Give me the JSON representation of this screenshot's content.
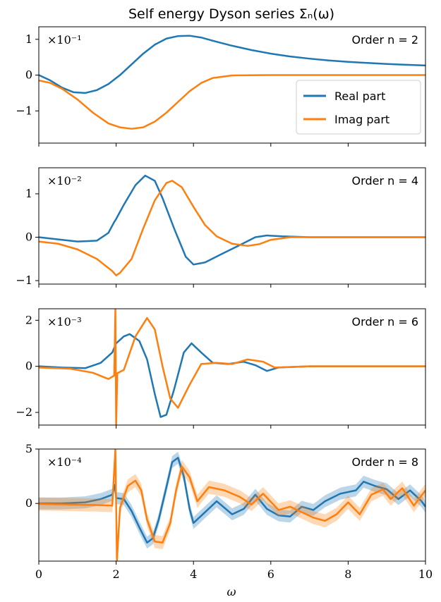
{
  "chart_data": {
    "type": "line",
    "title": "Self energy Dyson series Σₙ(ω)",
    "xlabel": "ω",
    "xlim": [
      0,
      10
    ],
    "x_ticks": [
      "0",
      "2",
      "4",
      "6",
      "8",
      "10"
    ],
    "legend": {
      "placement": "lower-right of first panel",
      "entries": [
        {
          "name": "Real part",
          "color": "#1f77b4"
        },
        {
          "name": "Imag part",
          "color": "#ff7f0e"
        }
      ]
    },
    "panels": [
      {
        "label": "Order n = 2",
        "scale_label": "×10⁻¹",
        "ylim": [
          -1.9,
          1.35
        ],
        "y_ticks": [
          {
            "v": 1,
            "t": "1"
          },
          {
            "v": 0,
            "t": "0"
          },
          {
            "v": -1,
            "t": "−1"
          }
        ],
        "series": [
          {
            "name": "Real part",
            "color": "#1f77b4",
            "points": [
              [
                0,
                0
              ],
              [
                0.3,
                -0.15
              ],
              [
                0.6,
                -0.35
              ],
              [
                0.9,
                -0.48
              ],
              [
                1.2,
                -0.5
              ],
              [
                1.5,
                -0.42
              ],
              [
                1.8,
                -0.25
              ],
              [
                2.1,
                0
              ],
              [
                2.4,
                0.3
              ],
              [
                2.7,
                0.6
              ],
              [
                3.0,
                0.85
              ],
              [
                3.3,
                1.02
              ],
              [
                3.6,
                1.09
              ],
              [
                3.9,
                1.1
              ],
              [
                4.2,
                1.05
              ],
              [
                4.5,
                0.96
              ],
              [
                5.0,
                0.82
              ],
              [
                5.5,
                0.7
              ],
              [
                6.0,
                0.6
              ],
              [
                6.5,
                0.52
              ],
              [
                7.0,
                0.46
              ],
              [
                7.5,
                0.41
              ],
              [
                8.0,
                0.37
              ],
              [
                8.5,
                0.34
              ],
              [
                9.0,
                0.31
              ],
              [
                9.5,
                0.29
              ],
              [
                10,
                0.27
              ]
            ]
          },
          {
            "name": "Imag part",
            "color": "#ff7f0e",
            "points": [
              [
                0,
                -0.15
              ],
              [
                0.3,
                -0.22
              ],
              [
                0.6,
                -0.38
              ],
              [
                1.0,
                -0.68
              ],
              [
                1.4,
                -1.05
              ],
              [
                1.8,
                -1.35
              ],
              [
                2.1,
                -1.46
              ],
              [
                2.4,
                -1.5
              ],
              [
                2.7,
                -1.46
              ],
              [
                3.0,
                -1.3
              ],
              [
                3.3,
                -1.05
              ],
              [
                3.6,
                -0.75
              ],
              [
                3.9,
                -0.45
              ],
              [
                4.2,
                -0.22
              ],
              [
                4.5,
                -0.08
              ],
              [
                5.0,
                -0.01
              ],
              [
                6.0,
                0
              ],
              [
                8.0,
                0
              ],
              [
                10,
                0
              ]
            ]
          }
        ]
      },
      {
        "label": "Order n = 4",
        "scale_label": "×10⁻²",
        "ylim": [
          -1.08,
          1.6
        ],
        "y_ticks": [
          {
            "v": 1,
            "t": "1"
          },
          {
            "v": 0,
            "t": "0"
          },
          {
            "v": -1,
            "t": "−1"
          }
        ],
        "series": [
          {
            "name": "Real part",
            "color": "#1f77b4",
            "points": [
              [
                0,
                0
              ],
              [
                0.5,
                -0.05
              ],
              [
                1.0,
                -0.1
              ],
              [
                1.5,
                -0.08
              ],
              [
                1.8,
                0.1
              ],
              [
                1.95,
                0.35
              ],
              [
                2.0,
                0.42
              ],
              [
                2.2,
                0.75
              ],
              [
                2.5,
                1.2
              ],
              [
                2.75,
                1.42
              ],
              [
                3.0,
                1.3
              ],
              [
                3.2,
                0.9
              ],
              [
                3.5,
                0.2
              ],
              [
                3.8,
                -0.45
              ],
              [
                4.0,
                -0.63
              ],
              [
                4.3,
                -0.58
              ],
              [
                4.7,
                -0.4
              ],
              [
                5.2,
                -0.18
              ],
              [
                5.6,
                0
              ],
              [
                5.9,
                0.04
              ],
              [
                6.3,
                0.02
              ],
              [
                7,
                0
              ],
              [
                10,
                0
              ]
            ]
          },
          {
            "name": "Imag part",
            "color": "#ff7f0e",
            "points": [
              [
                0,
                -0.1
              ],
              [
                0.5,
                -0.15
              ],
              [
                1.0,
                -0.28
              ],
              [
                1.5,
                -0.5
              ],
              [
                1.9,
                -0.78
              ],
              [
                2.0,
                -0.88
              ],
              [
                2.1,
                -0.82
              ],
              [
                2.4,
                -0.5
              ],
              [
                2.7,
                0.2
              ],
              [
                3.0,
                0.85
              ],
              [
                3.3,
                1.25
              ],
              [
                3.45,
                1.3
              ],
              [
                3.7,
                1.15
              ],
              [
                4.0,
                0.7
              ],
              [
                4.3,
                0.28
              ],
              [
                4.6,
                0.02
              ],
              [
                5.0,
                -0.15
              ],
              [
                5.4,
                -0.2
              ],
              [
                5.7,
                -0.16
              ],
              [
                6.0,
                -0.06
              ],
              [
                6.5,
                0
              ],
              [
                10,
                0
              ]
            ]
          }
        ]
      },
      {
        "label": "Order n = 6",
        "scale_label": "×10⁻³",
        "ylim": [
          -2.55,
          2.5
        ],
        "y_ticks": [
          {
            "v": 2,
            "t": "2"
          },
          {
            "v": 0,
            "t": "0"
          },
          {
            "v": -2,
            "t": "−2"
          }
        ],
        "series": [
          {
            "name": "Real part",
            "color": "#1f77b4",
            "points": [
              [
                0,
                0
              ],
              [
                0.6,
                -0.05
              ],
              [
                1.2,
                -0.08
              ],
              [
                1.6,
                0.15
              ],
              [
                1.9,
                0.6
              ],
              [
                2.0,
                1.0
              ],
              [
                2.2,
                1.3
              ],
              [
                2.35,
                1.4
              ],
              [
                2.6,
                1.1
              ],
              [
                2.8,
                0.3
              ],
              [
                3.0,
                -1.2
              ],
              [
                3.15,
                -2.2
              ],
              [
                3.3,
                -2.1
              ],
              [
                3.5,
                -1.0
              ],
              [
                3.75,
                0.6
              ],
              [
                3.95,
                1.0
              ],
              [
                4.2,
                0.6
              ],
              [
                4.5,
                0.15
              ],
              [
                4.9,
                0.1
              ],
              [
                5.3,
                0.2
              ],
              [
                5.6,
                0.05
              ],
              [
                5.9,
                -0.2
              ],
              [
                6.2,
                -0.05
              ],
              [
                7,
                0
              ],
              [
                10,
                0
              ]
            ]
          },
          {
            "name": "Imag part",
            "color": "#ff7f0e",
            "points": [
              [
                0,
                -0.05
              ],
              [
                0.8,
                -0.1
              ],
              [
                1.4,
                -0.28
              ],
              [
                1.8,
                -0.55
              ],
              [
                1.95,
                -0.4
              ],
              [
                1.98,
                2.5
              ],
              [
                2.0,
                -2.6
              ],
              [
                2.03,
                -0.3
              ],
              [
                2.2,
                -0.15
              ],
              [
                2.5,
                1.3
              ],
              [
                2.8,
                2.1
              ],
              [
                3.0,
                1.6
              ],
              [
                3.2,
                0
              ],
              [
                3.4,
                -1.4
              ],
              [
                3.6,
                -1.8
              ],
              [
                3.9,
                -0.8
              ],
              [
                4.2,
                0.1
              ],
              [
                4.6,
                0.15
              ],
              [
                5.0,
                0.1
              ],
              [
                5.4,
                0.3
              ],
              [
                5.8,
                0.2
              ],
              [
                6.1,
                -0.05
              ],
              [
                7,
                0
              ],
              [
                10,
                0
              ]
            ]
          }
        ]
      },
      {
        "label": "Order n = 8",
        "scale_label": "×10⁻⁴",
        "ylim": [
          -5.3,
          5.0
        ],
        "y_ticks": [
          {
            "v": 5,
            "t": "5"
          },
          {
            "v": 0,
            "t": "0"
          }
        ],
        "series": [
          {
            "name": "Real part",
            "color": "#1f77b4",
            "band": 0.55,
            "points": [
              [
                0,
                0
              ],
              [
                0.6,
                0
              ],
              [
                1.2,
                0.1
              ],
              [
                1.6,
                0.4
              ],
              [
                1.9,
                0.8
              ],
              [
                1.97,
                1.7
              ],
              [
                2.0,
                0.5
              ],
              [
                2.2,
                0.4
              ],
              [
                2.4,
                -0.7
              ],
              [
                2.6,
                -2.2
              ],
              [
                2.8,
                -3.6
              ],
              [
                2.95,
                -3.2
              ],
              [
                3.1,
                -1.5
              ],
              [
                3.3,
                1.5
              ],
              [
                3.45,
                3.8
              ],
              [
                3.6,
                4.2
              ],
              [
                3.75,
                2.5
              ],
              [
                3.9,
                -0.5
              ],
              [
                4.0,
                -1.8
              ],
              [
                4.3,
                -0.8
              ],
              [
                4.6,
                0.2
              ],
              [
                5.0,
                -1.0
              ],
              [
                5.3,
                -0.5
              ],
              [
                5.6,
                0.8
              ],
              [
                5.9,
                -0.5
              ],
              [
                6.2,
                -1.1
              ],
              [
                6.5,
                -1.2
              ],
              [
                6.8,
                -0.3
              ],
              [
                7.1,
                -0.6
              ],
              [
                7.4,
                0.2
              ],
              [
                7.8,
                0.9
              ],
              [
                8.2,
                1.2
              ],
              [
                8.4,
                2.0
              ],
              [
                8.7,
                1.6
              ],
              [
                9.0,
                1.3
              ],
              [
                9.3,
                0.4
              ],
              [
                9.6,
                1.2
              ],
              [
                9.9,
                0.2
              ],
              [
                10,
                -0.3
              ]
            ]
          },
          {
            "name": "Imag part",
            "color": "#ff7f0e",
            "band": 0.6,
            "points": [
              [
                0,
                -0.05
              ],
              [
                0.8,
                -0.1
              ],
              [
                1.5,
                -0.15
              ],
              [
                1.9,
                -0.2
              ],
              [
                1.98,
                5.0
              ],
              [
                2.02,
                -5.3
              ],
              [
                2.1,
                -0.4
              ],
              [
                2.3,
                1.6
              ],
              [
                2.5,
                2.1
              ],
              [
                2.65,
                1.2
              ],
              [
                2.8,
                -1.5
              ],
              [
                3.0,
                -3.5
              ],
              [
                3.2,
                -3.6
              ],
              [
                3.4,
                -1.8
              ],
              [
                3.55,
                1.2
              ],
              [
                3.7,
                3.4
              ],
              [
                3.9,
                2.4
              ],
              [
                4.1,
                0.2
              ],
              [
                4.4,
                1.5
              ],
              [
                4.8,
                1.2
              ],
              [
                5.2,
                0.6
              ],
              [
                5.5,
                -0.1
              ],
              [
                5.8,
                0.9
              ],
              [
                6.2,
                -0.6
              ],
              [
                6.5,
                -0.3
              ],
              [
                6.8,
                -0.8
              ],
              [
                7.1,
                -1.3
              ],
              [
                7.4,
                -1.6
              ],
              [
                7.7,
                -1.0
              ],
              [
                8.0,
                0.1
              ],
              [
                8.3,
                -1.0
              ],
              [
                8.6,
                0.8
              ],
              [
                8.9,
                1.3
              ],
              [
                9.1,
                0.4
              ],
              [
                9.4,
                1.4
              ],
              [
                9.7,
                -0.2
              ],
              [
                10,
                1.2
              ]
            ]
          }
        ]
      }
    ]
  }
}
